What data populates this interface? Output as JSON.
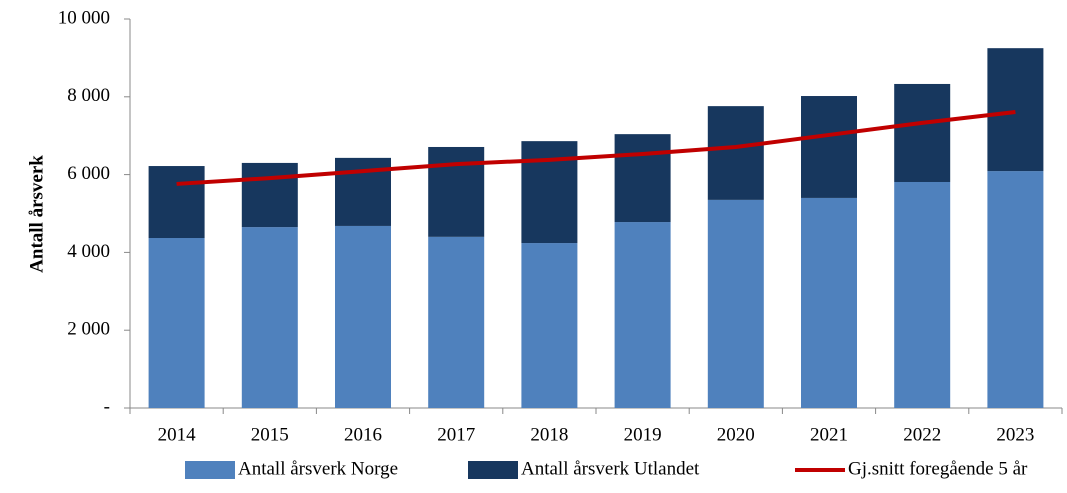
{
  "chart_data": {
    "type": "bar",
    "stacked": true,
    "y_label": "Antall årsverk",
    "categories": [
      "2014",
      "2015",
      "2016",
      "2017",
      "2018",
      "2019",
      "2020",
      "2021",
      "2022",
      "2023"
    ],
    "series": [
      {
        "name": "Antall årsverk Norge",
        "color": "#4f81bd",
        "type": "bar",
        "values": [
          4370,
          4650,
          4680,
          4400,
          4240,
          4780,
          5350,
          5400,
          5810,
          6090
        ]
      },
      {
        "name": "Antall årsverk Utlandet",
        "color": "#17375e",
        "type": "bar",
        "values": [
          1850,
          1650,
          1750,
          2310,
          2620,
          2260,
          2410,
          2620,
          2520,
          3160
        ]
      },
      {
        "name": "Gj.snitt foregående 5 år",
        "color": "#c00000",
        "type": "line",
        "values": [
          5760,
          5910,
          6090,
          6270,
          6380,
          6530,
          6710,
          7020,
          7330,
          7610
        ]
      }
    ],
    "ylim": [
      0,
      10000
    ],
    "yticks": [
      {
        "value": 0,
        "label": "-"
      },
      {
        "value": 2000,
        "label": "2 000"
      },
      {
        "value": 4000,
        "label": "4 000"
      },
      {
        "value": 6000,
        "label": "6 000"
      },
      {
        "value": 8000,
        "label": "8 000"
      },
      {
        "value": 10000,
        "label": "10 000"
      }
    ],
    "grid": false,
    "legend": "bottom"
  }
}
